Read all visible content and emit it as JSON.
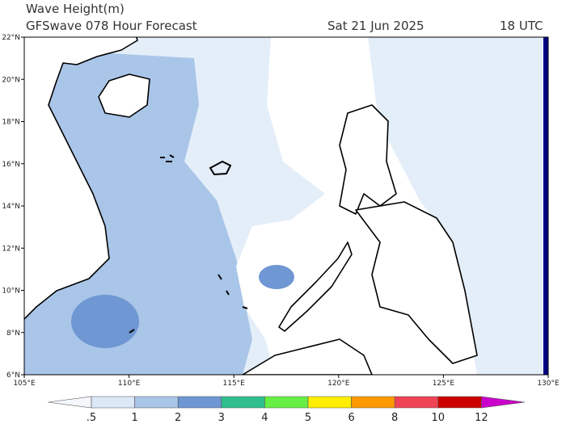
{
  "header": {
    "title": "Wave Height(m)",
    "subtitle": "GFSwave 078 Hour Forecast",
    "date": "Sat 21 Jun 2025",
    "time": "18 UTC"
  },
  "map": {
    "lat_ticks": [
      {
        "value": 6,
        "label": "6°N"
      },
      {
        "value": 8,
        "label": "8°N"
      },
      {
        "value": 10,
        "label": "10°N"
      },
      {
        "value": 12,
        "label": "12°N"
      },
      {
        "value": 14,
        "label": "14°N"
      },
      {
        "value": 16,
        "label": "16°N"
      },
      {
        "value": 18,
        "label": "18°N"
      },
      {
        "value": 20,
        "label": "20°N"
      },
      {
        "value": 22,
        "label": "22°N"
      }
    ],
    "lon_ticks": [
      {
        "value": 105,
        "label": "105°E"
      },
      {
        "value": 110,
        "label": "110°E"
      },
      {
        "value": 115,
        "label": "115°E"
      },
      {
        "value": 120,
        "label": "120°E"
      },
      {
        "value": 125,
        "label": "125°E"
      },
      {
        "value": 130,
        "label": "130°E"
      }
    ]
  },
  "colorbar": {
    "levels": [
      {
        "value": 0.5,
        "label": ".5"
      },
      1,
      2,
      3,
      4,
      5,
      6,
      8,
      10,
      12
    ],
    "colors": [
      "#f4f8fd",
      "#dbe8f6",
      "#a9c5e8",
      "#6e97d3",
      "#2fbf8f",
      "#66ee44",
      "#ffee00",
      "#ff9900",
      "#ee4455",
      "#cc0000",
      "#cc00cc"
    ]
  }
}
